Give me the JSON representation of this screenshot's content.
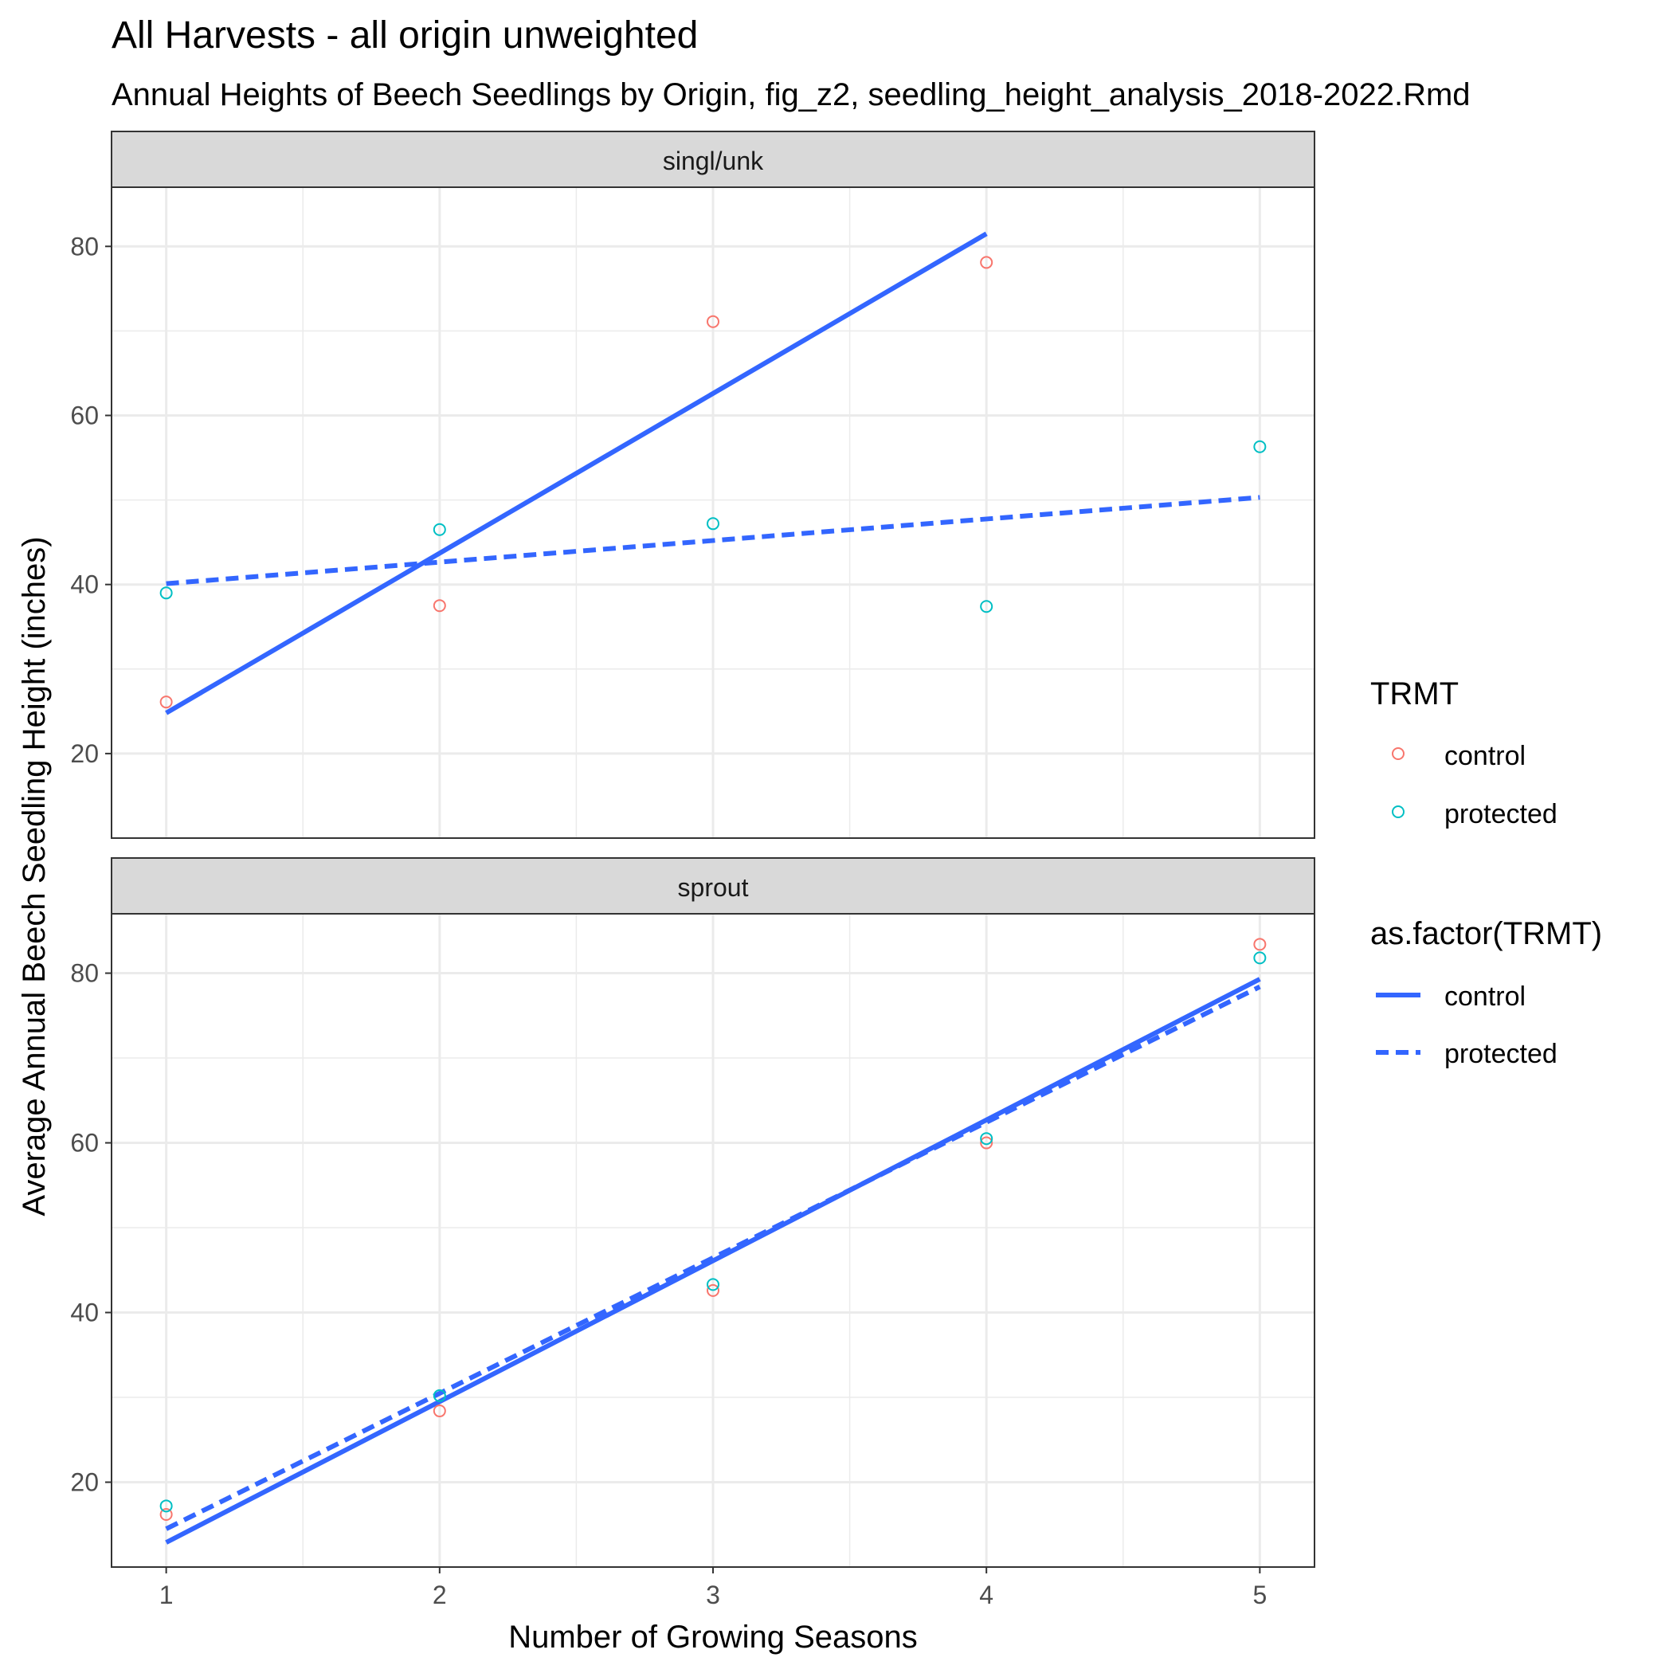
{
  "chart_data": {
    "type": "scatter",
    "title": "All Harvests - all origin unweighted",
    "subtitle": "Annual Heights of Beech Seedlings by Origin, fig_z2, seedling_height_analysis_2018-2022.Rmd",
    "xlabel": "Number of Growing Seasons",
    "ylabel": "Average Annual Beech Seedling Height (inches)",
    "xlim": [
      0.8,
      5.2
    ],
    "ylim": [
      10,
      87
    ],
    "x_ticks": [
      1,
      2,
      3,
      4,
      5
    ],
    "y_ticks": [
      20,
      40,
      60,
      80
    ],
    "grid": true,
    "colors": {
      "control": "#F8766D",
      "protected": "#00BFC4",
      "fit_line": "#3366FF"
    },
    "legend": {
      "placement": "right",
      "points_title": "TRMT",
      "lines_title": "as.factor(TRMT)",
      "entries": [
        "control",
        "protected"
      ]
    },
    "panels": [
      {
        "strip": "singl/unk",
        "series": [
          {
            "name": "control",
            "x": [
              1,
              2,
              3,
              4
            ],
            "y": [
              26.1,
              37.5,
              71.1,
              78.1
            ]
          },
          {
            "name": "protected",
            "x": [
              1,
              2,
              3,
              4,
              5
            ],
            "y": [
              39.0,
              46.5,
              47.2,
              37.4,
              56.3
            ]
          }
        ],
        "fits": [
          {
            "name": "control",
            "linetype": "solid",
            "x": [
              1,
              4
            ],
            "y": [
              24.8,
              81.5
            ]
          },
          {
            "name": "protected",
            "linetype": "dashed",
            "x": [
              1,
              5
            ],
            "y": [
              40.1,
              50.3
            ]
          }
        ]
      },
      {
        "strip": "sprout",
        "series": [
          {
            "name": "control",
            "x": [
              1,
              2,
              3,
              4,
              5
            ],
            "y": [
              16.2,
              28.4,
              42.6,
              60.0,
              83.4
            ]
          },
          {
            "name": "protected",
            "x": [
              1,
              2,
              3,
              4,
              5
            ],
            "y": [
              17.2,
              30.2,
              43.3,
              60.5,
              81.8
            ]
          }
        ],
        "fits": [
          {
            "name": "control",
            "linetype": "solid",
            "x": [
              1,
              5
            ],
            "y": [
              12.9,
              79.3
            ]
          },
          {
            "name": "protected",
            "linetype": "dashed",
            "x": [
              1,
              5
            ],
            "y": [
              14.5,
              78.4
            ]
          }
        ]
      }
    ]
  }
}
